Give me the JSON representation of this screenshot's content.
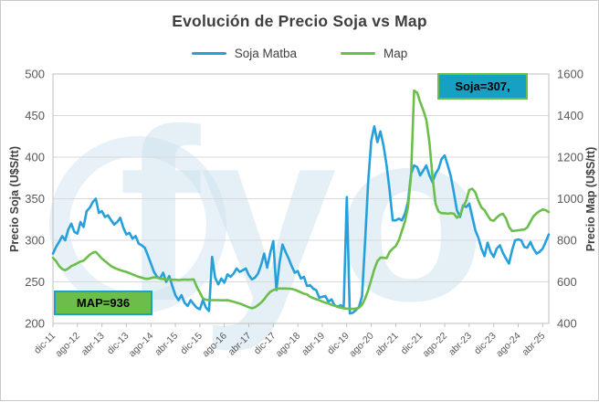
{
  "chart_data": {
    "type": "line",
    "title": "Evolución de Precio Soja vs Map",
    "legend_position": "top",
    "grid": true,
    "watermark": "fyo",
    "x_start_label": "dic-11",
    "x_frequency": "monthly",
    "x_tick_interval_months": 8,
    "x_tick_labels": [
      "dic-11",
      "ago-12",
      "abr-13",
      "dic-13",
      "ago-14",
      "abr-15",
      "dic-15",
      "ago-16",
      "abr-17",
      "dic-17",
      "ago-18",
      "abr-19",
      "dic-19",
      "ago-20",
      "abr-21",
      "dic-21",
      "ago-22",
      "abr-23",
      "dic-23",
      "ago-24",
      "abr-25"
    ],
    "left_axis": {
      "title": "Precio Soja (U$S/tt)",
      "min": 200,
      "max": 500,
      "step": 50
    },
    "right_axis": {
      "title": "Precio Map (U$S/tt)",
      "min": 400,
      "max": 1600,
      "step": 200
    },
    "series": [
      {
        "name": "Soja Matba",
        "axis": "left",
        "color": "#25A0DB",
        "values": [
          284,
          292,
          298,
          305,
          300,
          313,
          320,
          310,
          308,
          322,
          316,
          335,
          339,
          346,
          350,
          333,
          335,
          328,
          330,
          324,
          319,
          322,
          327,
          315,
          307,
          309,
          302,
          305,
          296,
          294,
          291,
          282,
          272,
          262,
          256,
          254,
          261,
          250,
          257,
          245,
          234,
          228,
          234,
          225,
          221,
          228,
          223,
          219,
          217,
          228,
          219,
          215,
          280,
          255,
          247,
          254,
          249,
          259,
          256,
          260,
          266,
          262,
          264,
          266,
          258,
          253,
          255,
          260,
          270,
          284,
          267,
          285,
          299,
          240,
          272,
          295,
          286,
          278,
          269,
          261,
          263,
          254,
          256,
          245,
          246,
          242,
          240,
          231,
          232,
          233,
          226,
          229,
          222,
          220,
          222,
          219,
          352,
          212,
          213,
          216,
          220,
          233,
          300,
          370,
          420,
          437,
          418,
          431,
          414,
          390,
          360,
          324,
          324,
          326,
          324,
          332,
          346,
          380,
          390,
          388,
          378,
          384,
          390,
          378,
          370,
          380,
          386,
          398,
          402,
          390,
          377,
          357,
          336,
          328,
          342,
          340,
          344,
          328,
          312,
          303,
          290,
          281,
          297,
          286,
          280,
          290,
          294,
          285,
          278,
          272,
          288,
          300,
          301,
          300,
          292,
          291,
          298,
          290,
          284,
          286,
          290,
          298,
          307
        ]
      },
      {
        "name": "Map",
        "axis": "right",
        "color": "#6CBE4B",
        "values": [
          716,
          700,
          676,
          662,
          656,
          664,
          676,
          682,
          690,
          698,
          702,
          716,
          730,
          740,
          744,
          728,
          712,
          700,
          688,
          676,
          668,
          662,
          656,
          652,
          648,
          642,
          636,
          630,
          624,
          620,
          616,
          614,
          618,
          622,
          620,
          616,
          614,
          612,
          612,
          610,
          610,
          609,
          610,
          611,
          610,
          611,
          612,
          576,
          548,
          520,
          514,
          512,
          512,
          512,
          512,
          511,
          511,
          512,
          508,
          504,
          500,
          496,
          490,
          484,
          478,
          473,
          478,
          488,
          500,
          516,
          536,
          552,
          560,
          566,
          568,
          568,
          568,
          567,
          566,
          562,
          556,
          550,
          543,
          540,
          528,
          522,
          516,
          512,
          505,
          500,
          496,
          490,
          485,
          480,
          476,
          473,
          471,
          470,
          470,
          472,
          475,
          490,
          520,
          560,
          610,
          660,
          700,
          716,
          716,
          714,
          744,
          760,
          772,
          800,
          845,
          890,
          960,
          1112,
          1520,
          1510,
          1465,
          1425,
          1380,
          1270,
          1110,
          975,
          938,
          930,
          930,
          928,
          930,
          928,
          908,
          920,
          960,
          990,
          1042,
          1048,
          1030,
          990,
          958,
          945,
          920,
          898,
          894,
          910,
          922,
          928,
          905,
          865,
          845,
          846,
          848,
          850,
          852,
          862,
          890,
          915,
          930,
          940,
          948,
          945,
          936
        ]
      }
    ],
    "annotations": [
      {
        "id": "soja",
        "text": "Soja=307,",
        "fill": "#18A0C4",
        "border": "#6CBE4B"
      },
      {
        "id": "map",
        "text": "MAP=936",
        "fill": "#6CBE4B",
        "border": "#1E9FC4"
      }
    ],
    "colors": {
      "grid": "#D9D9D9",
      "axis_line": "#BFBFBF",
      "tick_text": "#595959",
      "title_text": "#3F3F3F",
      "watermark": "#CFE3EF"
    }
  }
}
